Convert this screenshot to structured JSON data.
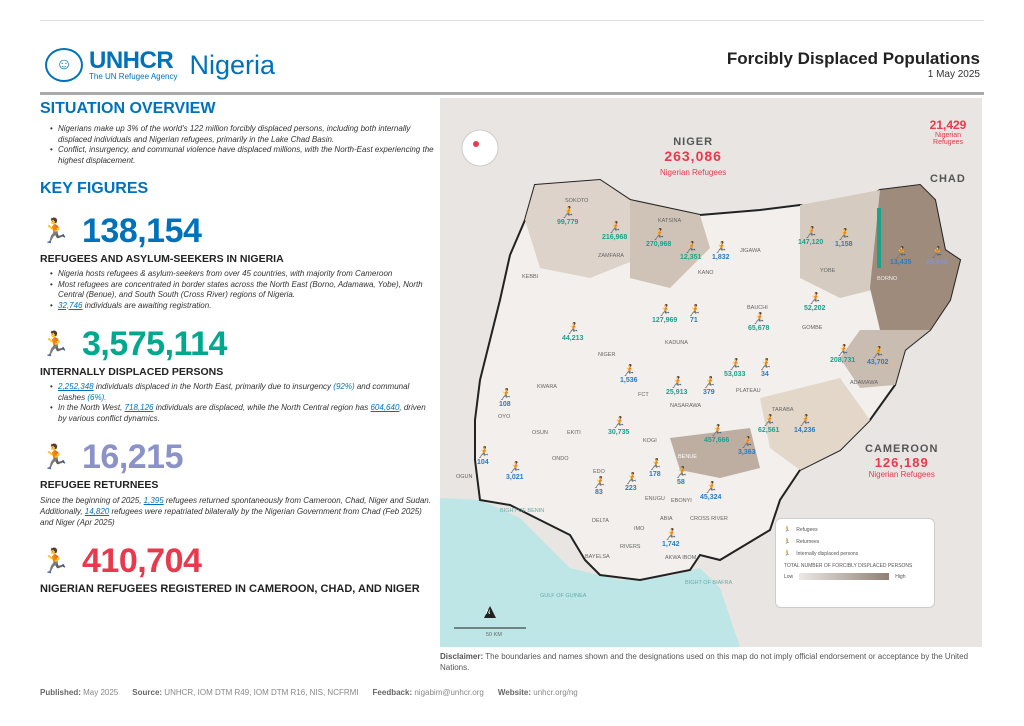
{
  "header": {
    "org": "UNHCR",
    "tagline": "The UN Refugee Agency",
    "country": "Nigeria",
    "title": "Forcibly Displaced Populations",
    "date": "1 May 2025"
  },
  "overview": {
    "heading": "SITUATION OVERVIEW",
    "bullets": [
      "Nigerians make up 3% of the world's 122 million forcibly displaced persons, including both internally displaced individuals and Nigerian refugees, primarily in the Lake Chad Basin.",
      "Conflict, insurgency, and communal violence have displaced millions, with the North-East experiencing the highest displacement."
    ]
  },
  "key_figures": {
    "heading": "KEY FIGURES",
    "refugees": {
      "value": "138,154",
      "label": "REFUGEES AND ASYLUM-SEEKERS IN NIGERIA",
      "b1": "Nigeria hosts refugees & asylum-seekers from over 45 countries, with majority from Cameroon",
      "b2": "Most refugees are concentrated in border states across the North East (Borno, Adamawa, Yobe), North Central (Benue), and South South (Cross River) regions of Nigeria.",
      "b3_link": "32,746",
      "b3": " individuals are awaiting registration."
    },
    "idps": {
      "value": "3,575,114",
      "label": "INTERNALLY DISPLACED PERSONS",
      "b1_link": "2,252,348",
      "b1a": " individuals displaced in the North East, primarily due to insurgency ",
      "b1_pct1": "(92%)",
      "b1b": " and communal clashes ",
      "b1_pct2": "(6%).",
      "b2a": "In the North West, ",
      "b2_link1": "718,126",
      "b2b": " individuals are displaced, while the North Central region has ",
      "b2_link2": "604,640",
      "b2c": ", driven by various conflict dynamics."
    },
    "returnees": {
      "value": "16,215",
      "label": "REFUGEE RETURNEES",
      "p1": "Since the beginning of 2025, ",
      "link1": "1,395",
      "p2": " refugees returned spontaneously from Cameroon, Chad, Niger and Sudan. Additionally, ",
      "link2": "14,820",
      "p3": " refugees were repatriated bilaterally by the Nigerian Government from Chad (Feb 2025) and Niger (Apr 2025)"
    },
    "abroad": {
      "value": "410,704",
      "label": "NIGERIAN REFUGEES REGISTERED IN CAMEROON, CHAD, AND NIGER"
    }
  },
  "colors": {
    "refugee": "#0072bc",
    "idp": "#00a88e",
    "returnee": "#8b92c8",
    "abroad": "#e8394d"
  },
  "map": {
    "countries": [
      {
        "name": "NIGER",
        "value": "263,086",
        "sub": "Nigerian Refugees"
      },
      {
        "name": "CHAD",
        "value": "21,429",
        "sub": "Nigerian Refugees"
      },
      {
        "name": "CAMEROON",
        "value": "126,189",
        "sub": "Nigerian Refugees"
      }
    ],
    "states": [
      "SOKOTO",
      "ZAMFARA",
      "KATSINA",
      "KANO",
      "JIGAWA",
      "YOBE",
      "BORNO",
      "KEBBI",
      "NIGER",
      "KADUNA",
      "BAUCHI",
      "GOMBE",
      "ADAMAWA",
      "PLATEAU",
      "NASARAWA",
      "TARABA",
      "BENUE",
      "KOGI",
      "KWARA",
      "OYO",
      "OSUN",
      "EKITI",
      "ONDO",
      "OGUN",
      "EDO",
      "ENUGU",
      "EBONYI",
      "CROSS RIVER",
      "DELTA",
      "IMO",
      "ABIA",
      "RIVERS",
      "BAYELSA",
      "AKWA IBOM",
      "FCT"
    ],
    "values": {
      "sokoto": "99,779",
      "zamfara": "216,968",
      "katsina": "270,968",
      "kano_idp": "12,351",
      "kano_ref": "1,832",
      "yobe_idp": "147,120",
      "yobe_ref": "1,158",
      "borno_ref": "13,435",
      "borno_ret": "16,843",
      "niger": "44,213",
      "kaduna_idp": "127,969",
      "kaduna_ref": "71",
      "bauchi": "65,678",
      "gombe": "52,202",
      "adamawa_idp": "208,731",
      "adamawa_ref": "43,702",
      "plateau_idp": "53,033",
      "plateau_ref": "34",
      "fct": "1,536",
      "nasarawa_idp": "25,913",
      "nasarawa_ref": "379",
      "taraba_idp": "62,561",
      "taraba_ref": "14,236",
      "benue_idp": "457,666",
      "benue_ref": "3,363",
      "kogi": "30,735",
      "oyo": "108",
      "ogun": "104",
      "lagos": "3,021",
      "edo": "83",
      "enugu": "178",
      "anambra": "223",
      "ebonyi": "58",
      "cross_river": "45,324",
      "akwa_ibom": "1,742"
    },
    "water": [
      "Bight of Benin",
      "Gulf of Guinea",
      "Bight of Biafra"
    ],
    "legend": {
      "refugees": "Refugees",
      "returnees": "Returnees",
      "idps": "Internally displaced persons",
      "total": "TOTAL NUMBER OF FORCIBLY DISPLACED PERSONS",
      "low": "Low",
      "high": "High"
    },
    "scale": "50 km",
    "north": "N"
  },
  "disclaimer": {
    "label": "Disclaimer:",
    "text": " The boundaries and names shown and the designations used on this map do not imply official endorsement or acceptance by the United Nations."
  },
  "footer": {
    "published_label": "Published:",
    "published": "May 2025",
    "source_label": "Source:",
    "source": "UNHCR, IOM DTM R49, IOM DTM R16, NIS, NCFRMI",
    "feedback_label": "Feedback:",
    "feedback": "nigabim@unhcr.org",
    "website_label": "Website:",
    "website": "unhcr.org/ng"
  }
}
